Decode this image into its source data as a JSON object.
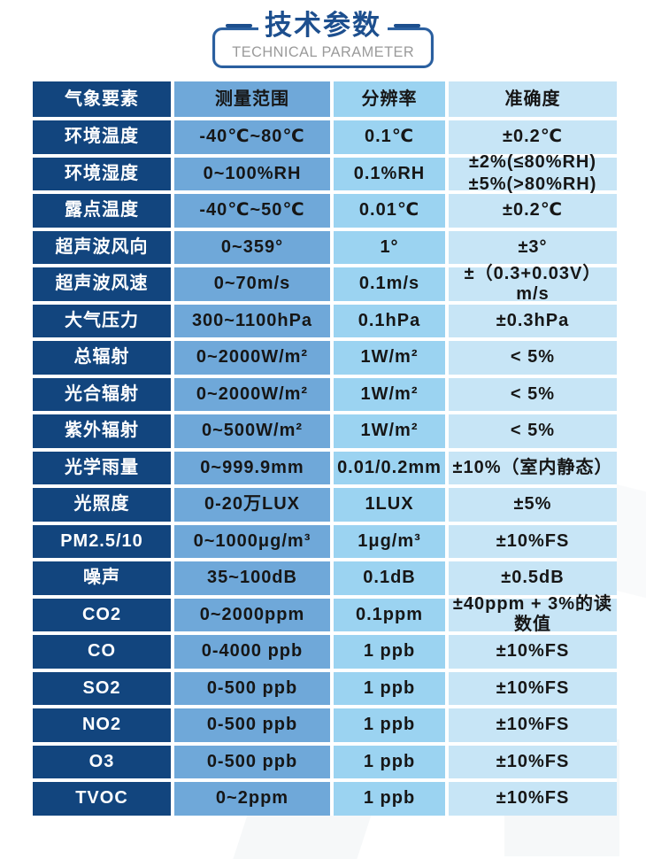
{
  "title": {
    "zh": "技术参数",
    "en": "TECHNICAL PARAMETER"
  },
  "colors": {
    "header_column_navy": "#12457e",
    "title_navy": "#1d4f8e",
    "range_column_blue": "#6fa8d9",
    "resolution_column_blue": "#8bcdef",
    "accuracy_column_blue": "#d9edfa",
    "accuracy_header_blue": "#c7e5f6",
    "box_border_blue": "#2a5f9f",
    "en_subtitle_gray": "#9a9a9a",
    "gridline_white": "#ffffff"
  },
  "table": {
    "headers": [
      "气象要素",
      "测量范围",
      "分辨率",
      "准确度"
    ],
    "rows": [
      {
        "element": "环境温度",
        "range": "-40℃~80℃",
        "resolution": "0.1℃",
        "accuracy": "±0.2℃"
      },
      {
        "element": "环境湿度",
        "range": "0~100%RH",
        "resolution": "0.1%RH",
        "accuracy": "±2%(≤80%RH)\n±5%(>80%RH)"
      },
      {
        "element": "露点温度",
        "range": "-40℃~50℃",
        "resolution": "0.01℃",
        "accuracy": "±0.2℃"
      },
      {
        "element": "超声波风向",
        "range": "0~359°",
        "resolution": "1°",
        "accuracy": "±3°"
      },
      {
        "element": "超声波风速",
        "range": "0~70m/s",
        "resolution": "0.1m/s",
        "accuracy": "±（0.3+0.03V）m/s"
      },
      {
        "element": "大气压力",
        "range": "300~1100hPa",
        "resolution": "0.1hPa",
        "accuracy": "±0.3hPa"
      },
      {
        "element": "总辐射",
        "range": "0~2000W/m²",
        "resolution": "1W/m²",
        "accuracy": "< 5%"
      },
      {
        "element": "光合辐射",
        "range": "0~2000W/m²",
        "resolution": "1W/m²",
        "accuracy": "< 5%"
      },
      {
        "element": "紫外辐射",
        "range": "0~500W/m²",
        "resolution": "1W/m²",
        "accuracy": "< 5%"
      },
      {
        "element": "光学雨量",
        "range": "0~999.9mm",
        "resolution": "0.01/0.2mm",
        "accuracy": "±10%（室内静态）"
      },
      {
        "element": "光照度",
        "range": "0-20万LUX",
        "resolution": "1LUX",
        "accuracy": "±5%"
      },
      {
        "element": "PM2.5/10",
        "range": "0~1000μg/m³",
        "resolution": "1μg/m³",
        "accuracy": "±10%FS"
      },
      {
        "element": "噪声",
        "range": "35~100dB",
        "resolution": "0.1dB",
        "accuracy": "±0.5dB"
      },
      {
        "element": "CO2",
        "range": "0~2000ppm",
        "resolution": "0.1ppm",
        "accuracy": "±40ppm + 3%的读数值"
      },
      {
        "element": "CO",
        "range": "0-4000 ppb",
        "resolution": "1 ppb",
        "accuracy": "±10%FS"
      },
      {
        "element": "SO2",
        "range": "0-500 ppb",
        "resolution": "1 ppb",
        "accuracy": "±10%FS"
      },
      {
        "element": "NO2",
        "range": "0-500 ppb",
        "resolution": "1 ppb",
        "accuracy": "±10%FS"
      },
      {
        "element": "O3",
        "range": "0-500 ppb",
        "resolution": "1 ppb",
        "accuracy": "±10%FS"
      },
      {
        "element": "TVOC",
        "range": "0~2ppm",
        "resolution": "1 ppb",
        "accuracy": "±10%FS"
      }
    ]
  }
}
